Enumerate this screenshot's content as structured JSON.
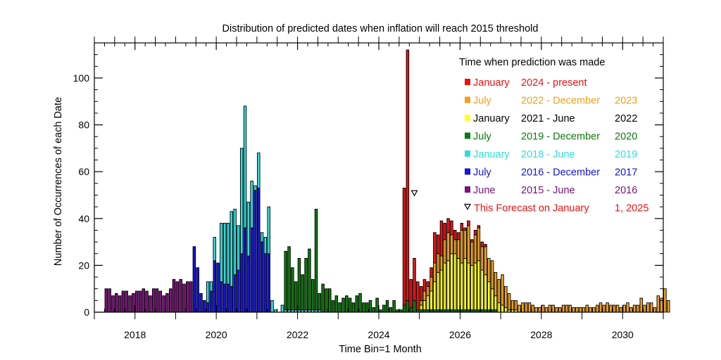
{
  "chart_data": {
    "type": "bar",
    "title": "Distribution of predicted dates when inflation will reach 2015 threshold",
    "xlabel": "Time Bin=1 Month",
    "ylabel": "Number of Occurrences of each Date",
    "x_start": "2017-04",
    "xlim": [
      "2017-01",
      "2031-01"
    ],
    "ylim": [
      0,
      115
    ],
    "x_ticks": [
      "2018",
      "2020",
      "2022",
      "2024",
      "2026",
      "2028",
      "2030"
    ],
    "y_ticks": [
      0,
      20,
      40,
      60,
      80,
      100
    ],
    "stacked": true,
    "legend_title": "Time when prediction was made",
    "legend_position": "top-right",
    "series": [
      {
        "name_parts": [
          "June",
          "2015 - June",
          "2016"
        ],
        "color": "#7a127a",
        "values": [
          10,
          10,
          7,
          8,
          7,
          9,
          9,
          7,
          8,
          9,
          9,
          10,
          9,
          7,
          10,
          10,
          9,
          7,
          8,
          10,
          14,
          13,
          14,
          12,
          13,
          13,
          0,
          0,
          0,
          0,
          0,
          0,
          0,
          0,
          0,
          0,
          0,
          0,
          0,
          0,
          0,
          0,
          0,
          0,
          0,
          0,
          0,
          0,
          0,
          0,
          0,
          0,
          0,
          0,
          0,
          0,
          0,
          0,
          0,
          0,
          0,
          0,
          0,
          0,
          0,
          0,
          0,
          0,
          0,
          0,
          0,
          0,
          0,
          0,
          0,
          0,
          0,
          0,
          0,
          0,
          0,
          0,
          0,
          0,
          0,
          0,
          0,
          0,
          0,
          0,
          0,
          0,
          0,
          0,
          0,
          0,
          0,
          0,
          0,
          0,
          0,
          0,
          0,
          0,
          0,
          0,
          0,
          0,
          0,
          0,
          0,
          0,
          0,
          0,
          0,
          0,
          0,
          0,
          0,
          0,
          0,
          0,
          0,
          0,
          0,
          0,
          0,
          0,
          0,
          0,
          0,
          0,
          0,
          0,
          0,
          0,
          0,
          0,
          0,
          0,
          0,
          0,
          0,
          0,
          0,
          0,
          0,
          0,
          0,
          0,
          0,
          0,
          0,
          0,
          0,
          0,
          0,
          0,
          0,
          0,
          0,
          0,
          0,
          0,
          0,
          0,
          0
        ]
      },
      {
        "name_parts": [
          "July",
          "2016 - December",
          "2017"
        ],
        "color": "#1414dc",
        "values": [
          0,
          0,
          0,
          0,
          0,
          0,
          0,
          0,
          0,
          0,
          0,
          0,
          0,
          0,
          0,
          0,
          0,
          0,
          0,
          0,
          0,
          0,
          0,
          0,
          0,
          0,
          28,
          19,
          8,
          5,
          4,
          9,
          22,
          21,
          13,
          12,
          12,
          11,
          16,
          18,
          25,
          36,
          24,
          36,
          52,
          53,
          30,
          25,
          25,
          0,
          0,
          0,
          0,
          0,
          0,
          0,
          0,
          0,
          0,
          0,
          0,
          0,
          0,
          0,
          0,
          0,
          0,
          0,
          0,
          0,
          0,
          0,
          0,
          0,
          0,
          0,
          0,
          0,
          0,
          0,
          0,
          0,
          0,
          0,
          0,
          0,
          0,
          0,
          0,
          0,
          0,
          0,
          0,
          0,
          0,
          0,
          0,
          0,
          0,
          0,
          0,
          0,
          0,
          0,
          0,
          0,
          0,
          0,
          0,
          0,
          0,
          0,
          0,
          0,
          0,
          0,
          0,
          0,
          0,
          0,
          0,
          0,
          0,
          0,
          0,
          0,
          0,
          0,
          0,
          0,
          0,
          0,
          0,
          0,
          0,
          0,
          0,
          0,
          0,
          0,
          0,
          0,
          0,
          0,
          0,
          0,
          0,
          0,
          0,
          0,
          0,
          0,
          0,
          0,
          0,
          0,
          0,
          0,
          0,
          0,
          0,
          0,
          0,
          0,
          0,
          0,
          0
        ]
      },
      {
        "name_parts": [
          "January",
          "2018 - June",
          "2019"
        ],
        "color": "#33dcdc",
        "values": [
          0,
          0,
          0,
          0,
          0,
          0,
          0,
          0,
          0,
          0,
          0,
          0,
          0,
          0,
          0,
          0,
          0,
          0,
          0,
          0,
          0,
          0,
          0,
          0,
          0,
          0,
          0,
          0,
          0,
          0,
          9,
          4,
          10,
          0,
          25,
          26,
          26,
          32,
          28,
          19,
          45,
          52,
          23,
          20,
          2,
          15,
          4,
          7,
          20,
          5,
          1,
          0,
          3,
          1,
          1,
          1,
          1,
          1,
          1,
          1,
          1,
          1,
          1,
          1,
          0,
          0,
          0,
          0,
          0,
          0,
          0,
          0,
          0,
          0,
          0,
          0,
          0,
          0,
          0,
          0,
          0,
          0,
          0,
          0,
          0,
          0,
          0,
          0,
          0,
          0,
          0,
          0,
          0,
          0,
          0,
          0,
          0,
          0,
          0,
          0,
          0,
          0,
          0,
          0,
          0,
          0,
          0,
          0,
          0,
          0,
          0,
          0,
          0,
          0,
          0,
          0,
          0,
          0,
          0,
          0,
          0,
          0,
          0,
          0,
          0,
          0,
          0,
          0,
          0,
          0,
          0,
          0,
          0,
          0,
          0,
          0,
          0,
          0,
          0,
          0,
          0,
          0,
          0,
          0,
          0,
          0,
          0,
          0,
          0,
          0,
          0,
          0,
          0,
          0,
          0,
          0,
          0,
          0,
          0,
          0,
          0,
          0,
          0,
          0,
          0,
          0,
          0
        ]
      },
      {
        "name_parts": [
          "July",
          "2019 - December",
          "2020"
        ],
        "color": "#0c7a0c",
        "values": [
          0,
          0,
          0,
          0,
          0,
          0,
          0,
          0,
          0,
          0,
          0,
          0,
          0,
          0,
          0,
          0,
          0,
          0,
          0,
          0,
          0,
          0,
          0,
          0,
          0,
          0,
          0,
          0,
          0,
          0,
          0,
          0,
          0,
          0,
          0,
          0,
          0,
          0,
          0,
          0,
          0,
          0,
          0,
          0,
          0,
          0,
          0,
          0,
          0,
          0,
          0,
          0,
          0,
          25,
          27,
          18,
          12,
          22,
          15,
          22,
          26,
          13,
          43,
          7,
          12,
          10,
          10,
          5,
          7,
          4,
          6,
          7,
          6,
          4,
          7,
          8,
          4,
          4,
          5,
          2,
          6,
          1,
          3,
          5,
          2,
          5,
          1,
          1,
          3,
          5,
          2,
          5,
          1,
          1,
          1,
          1,
          1,
          1,
          1,
          1,
          1,
          1,
          1,
          1,
          1,
          1,
          1,
          1,
          1,
          1,
          1,
          1,
          1,
          1,
          1,
          1,
          0,
          0,
          0,
          0,
          0,
          0,
          0,
          0,
          0,
          0,
          0,
          0,
          0,
          0,
          0,
          0,
          0,
          0,
          0,
          0,
          0,
          0,
          0,
          0,
          0,
          0,
          0,
          0,
          0,
          0,
          0,
          0,
          0,
          0,
          0,
          0,
          0,
          0,
          0,
          0,
          0,
          0,
          0,
          0,
          0,
          0,
          0,
          0,
          0
        ]
      },
      {
        "name_parts": [
          "January",
          "2021 - June",
          "2022"
        ],
        "color": "#ffff22",
        "values": [
          0,
          0,
          0,
          0,
          0,
          0,
          0,
          0,
          0,
          0,
          0,
          0,
          0,
          0,
          0,
          0,
          0,
          0,
          0,
          0,
          0,
          0,
          0,
          0,
          0,
          0,
          0,
          0,
          0,
          0,
          0,
          0,
          0,
          0,
          0,
          0,
          0,
          0,
          0,
          0,
          0,
          0,
          0,
          0,
          0,
          0,
          0,
          0,
          0,
          0,
          0,
          0,
          0,
          0,
          0,
          0,
          0,
          0,
          0,
          0,
          0,
          0,
          0,
          0,
          0,
          0,
          0,
          0,
          0,
          0,
          0,
          0,
          0,
          0,
          0,
          0,
          0,
          0,
          0,
          0,
          0,
          0,
          0,
          0,
          0,
          0,
          0,
          0,
          0,
          0,
          0,
          0,
          0,
          2,
          4,
          6,
          8,
          12,
          16,
          17,
          20,
          21,
          24,
          24,
          22,
          20,
          22,
          20,
          19,
          20,
          21,
          17,
          15,
          12,
          9,
          6,
          4,
          3,
          2,
          1,
          1,
          1,
          0,
          0,
          0,
          0,
          0,
          0,
          0,
          0,
          0,
          0,
          0,
          0,
          0,
          0,
          0,
          0,
          0,
          0,
          0,
          0,
          0,
          0,
          0,
          0,
          0,
          0,
          0,
          0,
          0,
          0,
          0,
          0,
          0,
          0,
          0,
          0,
          0,
          0,
          0,
          0,
          0,
          0,
          0
        ]
      },
      {
        "name_parts": [
          "July",
          "2022 - December",
          "2023"
        ],
        "color": "#f0a01e",
        "values": [
          0,
          0,
          0,
          0,
          0,
          0,
          0,
          0,
          0,
          0,
          0,
          0,
          0,
          0,
          0,
          0,
          0,
          0,
          0,
          0,
          0,
          0,
          0,
          0,
          0,
          0,
          0,
          0,
          0,
          0,
          0,
          0,
          0,
          0,
          0,
          0,
          0,
          0,
          0,
          0,
          0,
          0,
          0,
          0,
          0,
          0,
          0,
          0,
          0,
          0,
          0,
          0,
          0,
          0,
          0,
          0,
          0,
          0,
          0,
          0,
          0,
          0,
          0,
          0,
          0,
          0,
          0,
          0,
          0,
          0,
          0,
          0,
          0,
          0,
          0,
          0,
          0,
          0,
          0,
          0,
          0,
          0,
          0,
          0,
          0,
          0,
          0,
          0,
          0,
          0,
          0,
          0,
          0,
          2,
          4,
          4,
          6,
          8,
          8,
          6,
          10,
          12,
          8,
          6,
          8,
          14,
          12,
          16,
          10,
          12,
          14,
          10,
          12,
          10,
          12,
          10,
          10,
          13,
          9,
          7,
          4,
          4,
          3,
          4,
          4,
          4,
          3,
          2,
          2,
          3,
          2,
          3,
          3,
          2,
          2,
          3,
          3,
          3,
          2,
          2,
          2,
          2,
          3,
          2,
          2,
          3,
          4,
          3,
          4,
          3,
          3,
          3,
          2,
          3,
          4,
          2,
          3,
          3,
          6,
          3,
          4,
          4,
          2,
          7,
          6,
          10,
          5
        ]
      },
      {
        "name_parts": [
          "January",
          "2024 - present",
          ""
        ],
        "color": "#ee1111",
        "values": [
          0,
          0,
          0,
          0,
          0,
          0,
          0,
          0,
          0,
          0,
          0,
          0,
          0,
          0,
          0,
          0,
          0,
          0,
          0,
          0,
          0,
          0,
          0,
          0,
          0,
          0,
          0,
          0,
          0,
          0,
          0,
          0,
          0,
          0,
          0,
          0,
          0,
          0,
          0,
          0,
          0,
          0,
          0,
          0,
          0,
          0,
          0,
          0,
          0,
          0,
          0,
          0,
          0,
          0,
          0,
          0,
          0,
          0,
          0,
          0,
          0,
          0,
          0,
          0,
          0,
          0,
          0,
          0,
          0,
          0,
          0,
          0,
          0,
          0,
          0,
          0,
          0,
          0,
          0,
          0,
          0,
          0,
          0,
          0,
          0,
          0,
          0,
          0,
          50,
          107,
          12,
          18,
          12,
          6,
          5,
          2,
          4,
          13,
          8,
          15,
          7,
          6,
          6,
          4,
          3,
          3,
          1,
          2,
          1,
          2,
          1,
          2,
          1,
          0,
          0,
          0,
          0,
          0,
          0,
          0,
          0,
          0,
          0,
          0,
          0,
          0,
          0,
          0,
          0,
          0,
          0,
          0,
          0,
          0,
          0,
          0,
          0,
          0,
          0,
          0,
          0,
          0,
          0,
          0,
          0,
          0,
          0,
          0,
          0,
          0,
          0,
          0,
          0,
          0,
          0,
          0,
          0,
          0,
          0
        ]
      }
    ],
    "forecast_marker": {
      "label_parts": [
        "This Forecast on January",
        "1, 2025"
      ],
      "color": "#ee1111",
      "x": "2024-11",
      "y": 51
    }
  }
}
